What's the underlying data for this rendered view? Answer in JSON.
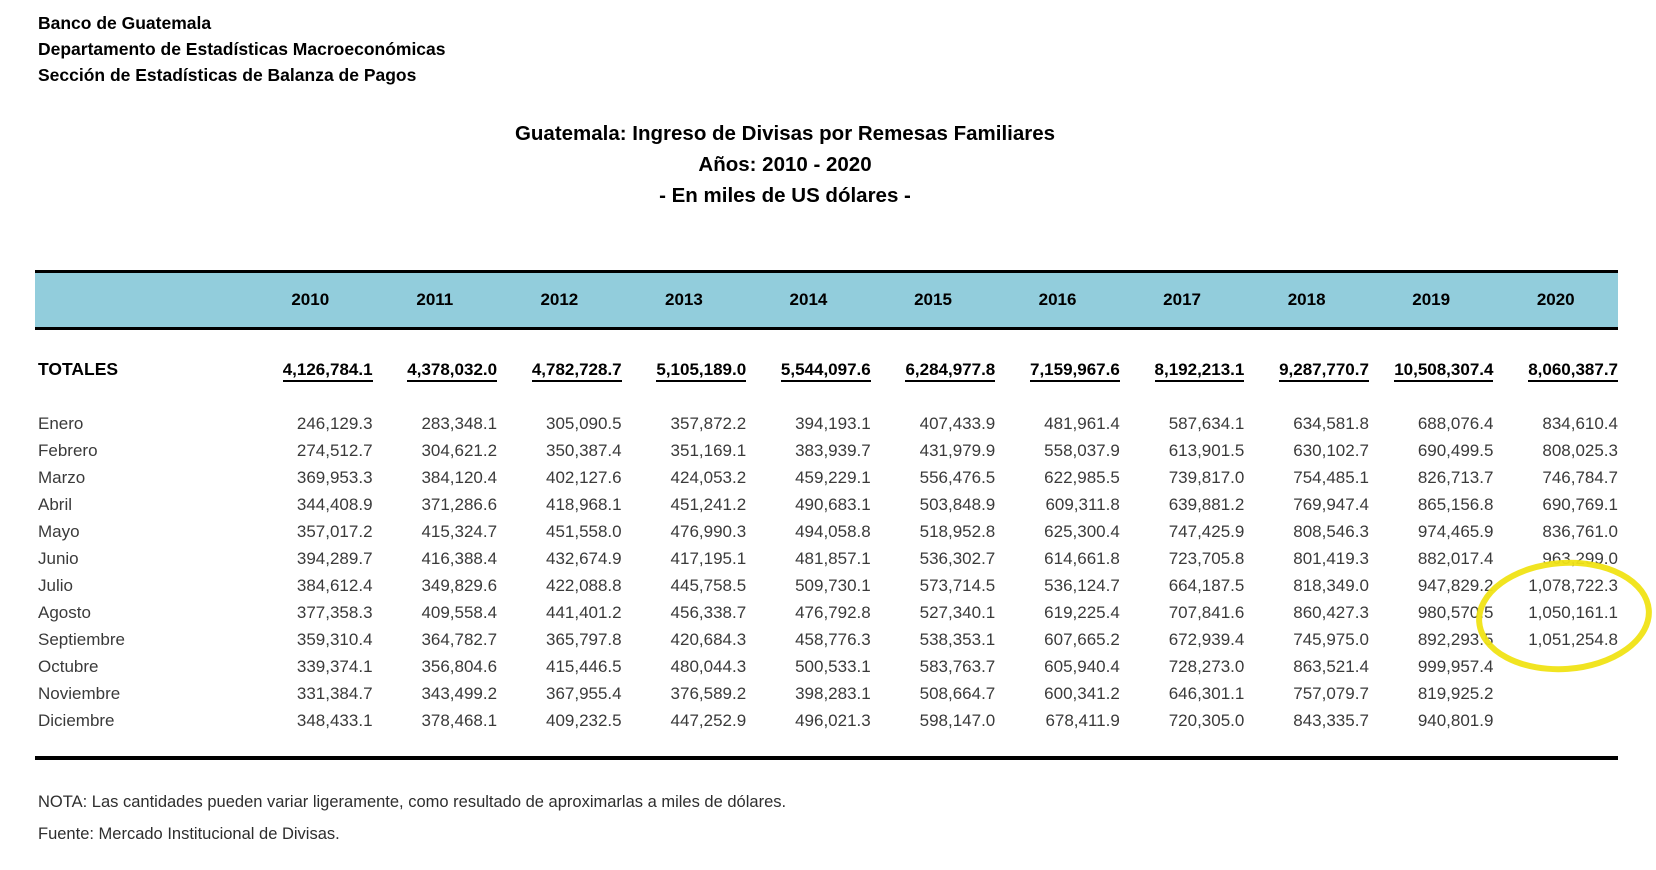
{
  "org": {
    "line1": "Banco de Guatemala",
    "line2": "Departamento de Estadísticas Macroeconómicas",
    "line3": "Sección de Estadísticas de Balanza de Pagos"
  },
  "title": {
    "line1": "Guatemala: Ingreso de Divisas por Remesas Familiares",
    "line2": "Años: 2010 - 2020",
    "line3": "- En miles de US dólares -"
  },
  "table": {
    "years": [
      "2010",
      "2011",
      "2012",
      "2013",
      "2014",
      "2015",
      "2016",
      "2017",
      "2018",
      "2019",
      "2020"
    ],
    "totales_label": "TOTALES",
    "totales": [
      "4,126,784.1",
      "4,378,032.0",
      "4,782,728.7",
      "5,105,189.0",
      "5,544,097.6",
      "6,284,977.8",
      "7,159,967.6",
      "8,192,213.1",
      "9,287,770.7",
      "10,508,307.4",
      "8,060,387.7"
    ],
    "rows": [
      {
        "month": "Enero",
        "values": [
          "246,129.3",
          "283,348.1",
          "305,090.5",
          "357,872.2",
          "394,193.1",
          "407,433.9",
          "481,961.4",
          "587,634.1",
          "634,581.8",
          "688,076.4",
          "834,610.4"
        ]
      },
      {
        "month": "Febrero",
        "values": [
          "274,512.7",
          "304,621.2",
          "350,387.4",
          "351,169.1",
          "383,939.7",
          "431,979.9",
          "558,037.9",
          "613,901.5",
          "630,102.7",
          "690,499.5",
          "808,025.3"
        ]
      },
      {
        "month": "Marzo",
        "values": [
          "369,953.3",
          "384,120.4",
          "402,127.6",
          "424,053.2",
          "459,229.1",
          "556,476.5",
          "622,985.5",
          "739,817.0",
          "754,485.1",
          "826,713.7",
          "746,784.7"
        ]
      },
      {
        "month": "Abril",
        "values": [
          "344,408.9",
          "371,286.6",
          "418,968.1",
          "451,241.2",
          "490,683.1",
          "503,848.9",
          "609,311.8",
          "639,881.2",
          "769,947.4",
          "865,156.8",
          "690,769.1"
        ]
      },
      {
        "month": "Mayo",
        "values": [
          "357,017.2",
          "415,324.7",
          "451,558.0",
          "476,990.3",
          "494,058.8",
          "518,952.8",
          "625,300.4",
          "747,425.9",
          "808,546.3",
          "974,465.9",
          "836,761.0"
        ]
      },
      {
        "month": "Junio",
        "values": [
          "394,289.7",
          "416,388.4",
          "432,674.9",
          "417,195.1",
          "481,857.1",
          "536,302.7",
          "614,661.8",
          "723,705.8",
          "801,419.3",
          "882,017.4",
          "963,299.0"
        ]
      },
      {
        "month": "Julio",
        "values": [
          "384,612.4",
          "349,829.6",
          "422,088.8",
          "445,758.5",
          "509,730.1",
          "573,714.5",
          "536,124.7",
          "664,187.5",
          "818,349.0",
          "947,829.2",
          "1,078,722.3"
        ]
      },
      {
        "month": "Agosto",
        "values": [
          "377,358.3",
          "409,558.4",
          "441,401.2",
          "456,338.7",
          "476,792.8",
          "527,340.1",
          "619,225.4",
          "707,841.6",
          "860,427.3",
          "980,570.5",
          "1,050,161.1"
        ]
      },
      {
        "month": "Septiembre",
        "values": [
          "359,310.4",
          "364,782.7",
          "365,797.8",
          "420,684.3",
          "458,776.3",
          "538,353.1",
          "607,665.2",
          "672,939.4",
          "745,975.0",
          "892,293.5",
          "1,051,254.8"
        ]
      },
      {
        "month": "Octubre",
        "values": [
          "339,374.1",
          "356,804.6",
          "415,446.5",
          "480,044.3",
          "500,533.1",
          "583,763.7",
          "605,940.4",
          "728,273.0",
          "863,521.4",
          "999,957.4",
          ""
        ]
      },
      {
        "month": "Noviembre",
        "values": [
          "331,384.7",
          "343,499.2",
          "367,955.4",
          "376,589.2",
          "398,283.1",
          "508,664.7",
          "600,341.2",
          "646,301.1",
          "757,079.7",
          "819,925.2",
          ""
        ]
      },
      {
        "month": "Diciembre",
        "values": [
          "348,433.1",
          "378,468.1",
          "409,232.5",
          "447,252.9",
          "496,021.3",
          "598,147.0",
          "678,411.9",
          "720,305.0",
          "843,335.7",
          "940,801.9",
          ""
        ]
      }
    ]
  },
  "notes": {
    "nota": "NOTA: Las cantidades pueden variar ligeramente, como resultado de aproximarlas a miles de dólares.",
    "fuente": "Fuente: Mercado Institucional de Divisas."
  },
  "annotation": {
    "type": "hand-drawn-ellipse",
    "highlights": "2020 Julio, Agosto, Septiembre values",
    "color": "#F0E315"
  },
  "colors": {
    "header_band": "#92CDDC",
    "rule": "#000000"
  }
}
